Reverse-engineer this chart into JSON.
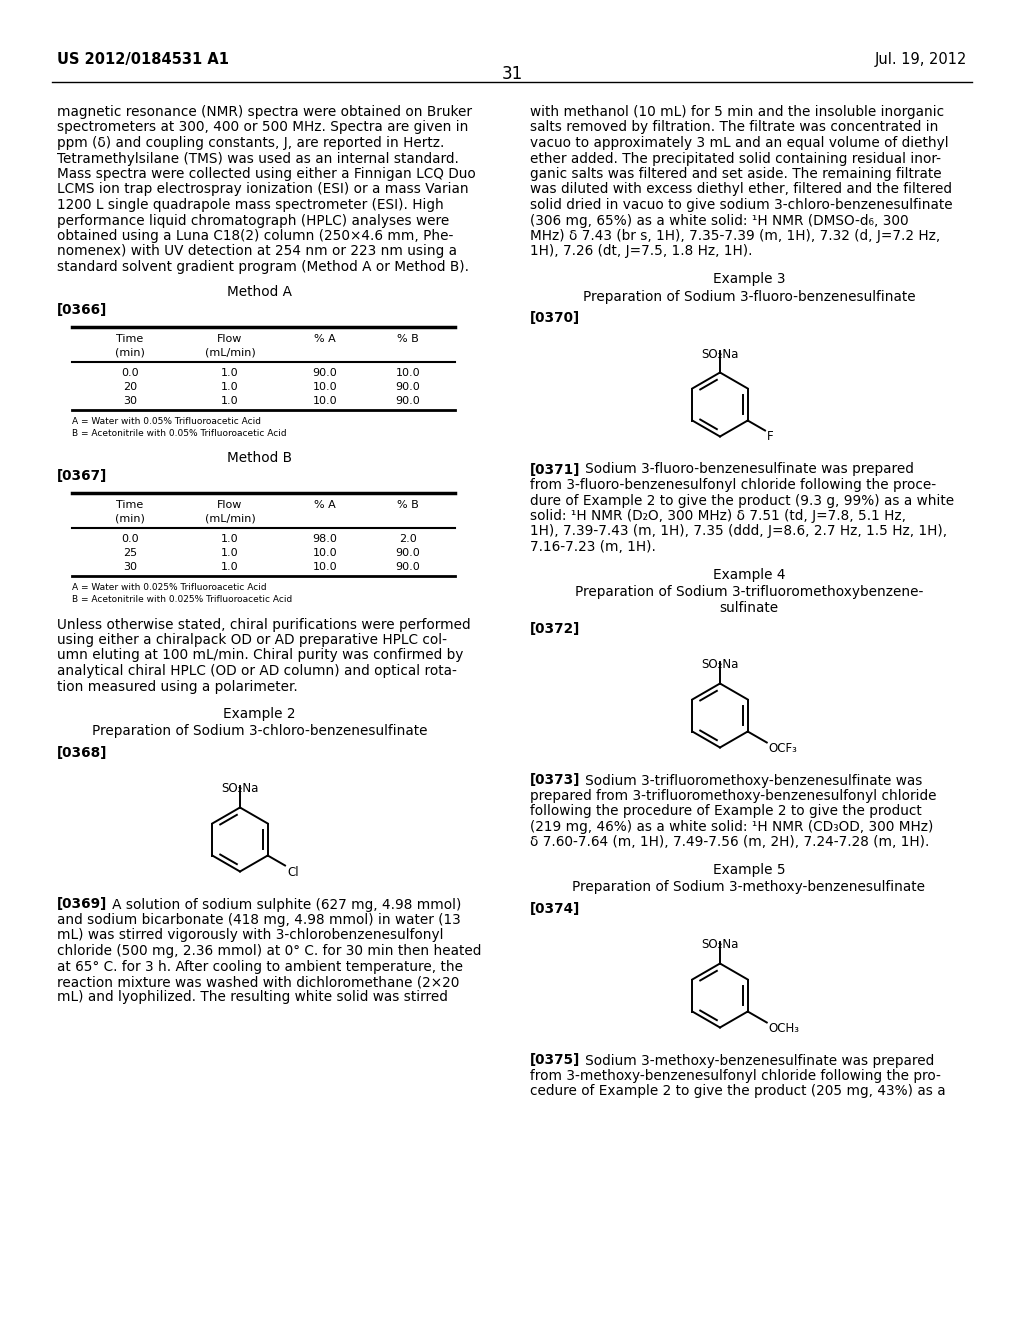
{
  "page_header_left": "US 2012/0184531 A1",
  "page_header_right": "Jul. 19, 2012",
  "page_number": "31",
  "left_column_text": [
    "magnetic resonance (NMR) spectra were obtained on Bruker",
    "spectrometers at 300, 400 or 500 MHz. Spectra are given in",
    "ppm (δ) and coupling constants, J, are reported in Hertz.",
    "Tetramethylsilane (TMS) was used as an internal standard.",
    "Mass spectra were collected using either a Finnigan LCQ Duo",
    "LCMS ion trap electrospray ionization (ESI) or a mass Varian",
    "1200 L single quadrapole mass spectrometer (ESI). High",
    "performance liquid chromatograph (HPLC) analyses were",
    "obtained using a Luna C18(2) column (250×4.6 mm, Phe-",
    "nomenex) with UV detection at 254 nm or 223 nm using a",
    "standard solvent gradient program (Method A or Method B)."
  ],
  "method_a_title": "Method A",
  "para_0366": "[0366]",
  "table_a_headers": [
    "Time\n(min)",
    "Flow\n(mL/min)",
    "% A",
    "% B"
  ],
  "table_a_rows": [
    [
      "0.0",
      "1.0",
      "90.0",
      "10.0"
    ],
    [
      "20",
      "1.0",
      "10.0",
      "90.0"
    ],
    [
      "30",
      "1.0",
      "10.0",
      "90.0"
    ]
  ],
  "table_a_note_a": "A = Water with 0.05% Trifluoroacetic Acid",
  "table_a_note_b": "B = Acetonitrile with 0.05% Trifluoroacetic Acid",
  "method_b_title": "Method B",
  "para_0367": "[0367]",
  "table_b_headers": [
    "Time\n(min)",
    "Flow\n(mL/min)",
    "% A",
    "% B"
  ],
  "table_b_rows": [
    [
      "0.0",
      "1.0",
      "98.0",
      "2.0"
    ],
    [
      "25",
      "1.0",
      "10.0",
      "90.0"
    ],
    [
      "30",
      "1.0",
      "10.0",
      "90.0"
    ]
  ],
  "table_b_note_a": "A = Water with 0.025% Trifluoroacetic Acid",
  "table_b_note_b": "B = Acetonitrile with 0.025% Trifluoroacetic Acid",
  "chiral_text": [
    "Unless otherwise stated, chiral purifications were performed",
    "using either a chiralpack OD or AD preparative HPLC col-",
    "umn eluting at 100 mL/min. Chiral purity was confirmed by",
    "analytical chiral HPLC (OD or AD column) and optical rota-",
    "tion measured using a polarimeter."
  ],
  "example2_title": "Example 2",
  "example2_subtitle": "Preparation of Sodium 3-chloro-benzenesulfinate",
  "para_0368": "[0368]",
  "example2_body_bold": "[0369]",
  "example2_body_text": "   A solution of sodium sulphite (627 mg, 4.98 mmol)\nand sodium bicarbonate (418 mg, 4.98 mmol) in water (13\nmL) was stirred vigorously with 3-chlorobenzenesulfonyl\nchloride (500 mg, 2.36 mmol) at 0° C. for 30 min then heated\nat 65° C. for 3 h. After cooling to ambient temperature, the\nreaction mixture was washed with dichloromethane (2×20\nmL) and lyophilized. The resulting white solid was stirred",
  "right_column_text_top": [
    "with methanol (10 mL) for 5 min and the insoluble inorganic",
    "salts removed by filtration. The filtrate was concentrated in",
    "vacuo to approximately 3 mL and an equal volume of diethyl",
    "ether added. The precipitated solid containing residual inor-",
    "ganic salts was filtered and set aside. The remaining filtrate",
    "was diluted with excess diethyl ether, filtered and the filtered",
    "solid dried in vacuo to give sodium 3-chloro-benzenesulfinate",
    "(306 mg, 65%) as a white solid: ¹H NMR (DMSO-d₆, 300",
    "MHz) δ 7.43 (br s, 1H), 7.35-7.39 (m, 1H), 7.32 (d, J=7.2 Hz,",
    "1H), 7.26 (dt, J=7.5, 1.8 Hz, 1H)."
  ],
  "example3_title": "Example 3",
  "example3_subtitle": "Preparation of Sodium 3-fluoro-benzenesulfinate",
  "para_0370": "[0370]",
  "example3_body_bold": "[0371]",
  "example3_body_text": "   Sodium 3-fluoro-benzenesulfinate was prepared\nfrom 3-fluoro-benzenesulfonyl chloride following the proce-\ndure of Example 2 to give the product (9.3 g, 99%) as a white\nsolid: ¹H NMR (D₂O, 300 MHz) δ 7.51 (td, J=7.8, 5.1 Hz,\n1H), 7.39-7.43 (m, 1H), 7.35 (ddd, J=8.6, 2.7 Hz, 1.5 Hz, 1H),\n7.16-7.23 (m, 1H).",
  "example4_title": "Example 4",
  "example4_subtitle_1": "Preparation of Sodium 3-trifluoromethoxybenzene-",
  "example4_subtitle_2": "sulfinate",
  "para_0372": "[0372]",
  "example4_body_bold": "[0373]",
  "example4_body_text": "   Sodium 3-trifluoromethoxy-benzenesulfinate was\nprepared from 3-trifluoromethoxy-benzenesulfonyl chloride\nfollowing the procedure of Example 2 to give the product\n(219 mg, 46%) as a white solid: ¹H NMR (CD₃OD, 300 MHz)\nδ 7.60-7.64 (m, 1H), 7.49-7.56 (m, 2H), 7.24-7.28 (m, 1H).",
  "example5_title": "Example 5",
  "example5_subtitle": "Preparation of Sodium 3-methoxy-benzenesulfinate",
  "para_0374": "[0374]",
  "example5_body_bold": "[0375]",
  "example5_body_text": "   Sodium 3-methoxy-benzenesulfinate was prepared\nfrom 3-methoxy-benzenesulfonyl chloride following the pro-\ncedure of Example 2 to give the product (205 mg, 43%) as a",
  "background_color": "#ffffff",
  "text_color": "#000000",
  "fs_body": 9.8,
  "fs_small": 8.0,
  "fs_header": 10.5,
  "fs_title": 10.5,
  "lh_body": 15.5,
  "lh_small": 12.0
}
